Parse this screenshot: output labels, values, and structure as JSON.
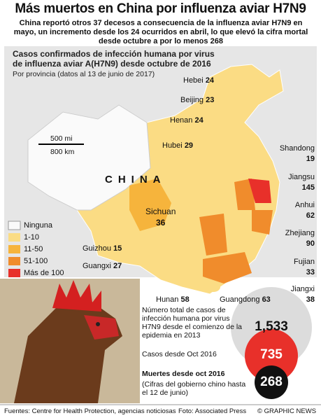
{
  "header": {
    "title": "Más muertos en China por influenza aviar H7N9",
    "subtitle": "China reportó otros 37 decesos a consecuencia de la influenza aviar H7N9 en mayo, un incremento desde los 24 ocurridos en abril, lo que elevó la cifra mortal desde octubre a por lo menos 268"
  },
  "map": {
    "title": "Casos confirmados de infección humana por virus de influenza aviar A(H7N9) desde octubre de 2016",
    "subtitle": "Por provincia (datos al 13 de junio de 2017)",
    "country": "CHINA",
    "scale": [
      "500 mi",
      "800 km"
    ],
    "legend": [
      "Ninguna",
      "1-10",
      "11-50",
      "51-100",
      "Más de 100"
    ],
    "provinces": [
      {
        "name": "Hebei",
        "cases": "24"
      },
      {
        "name": "Beijing",
        "cases": "23"
      },
      {
        "name": "Henan",
        "cases": "24"
      },
      {
        "name": "Hubei",
        "cases": "29"
      },
      {
        "name": "Shandong",
        "cases": "19"
      },
      {
        "name": "Jiangsu",
        "cases": "145"
      },
      {
        "name": "Anhui",
        "cases": "62"
      },
      {
        "name": "Zhejiang",
        "cases": "90"
      },
      {
        "name": "Fujian",
        "cases": "33"
      },
      {
        "name": "Jiangxi",
        "cases": "38"
      },
      {
        "name": "Guangdong",
        "cases": "63"
      },
      {
        "name": "Hunan",
        "cases": "58"
      },
      {
        "name": "Guangxi",
        "cases": "27"
      },
      {
        "name": "Guizhou",
        "cases": "15"
      },
      {
        "name": "Sichuan",
        "cases": "36"
      }
    ]
  },
  "stats": {
    "total_label": "Número total de casos de infección humana por virus H7N9 desde el comienzo de la epidemia en 2013",
    "total": "1,533",
    "cases_label": "Casos desde Oct 2016",
    "cases": "735",
    "deaths_label": "Muertes desde oct 2016",
    "deaths_note": "(Cifras del gobierno chino hasta el 12 de junio)",
    "deaths": "268"
  },
  "footer": {
    "sources": "Fuentes: Centre for Health Protection, agencias noticiosas",
    "photo": "Foto: Associated Press",
    "credit": "© GRAPHIC NEWS"
  }
}
